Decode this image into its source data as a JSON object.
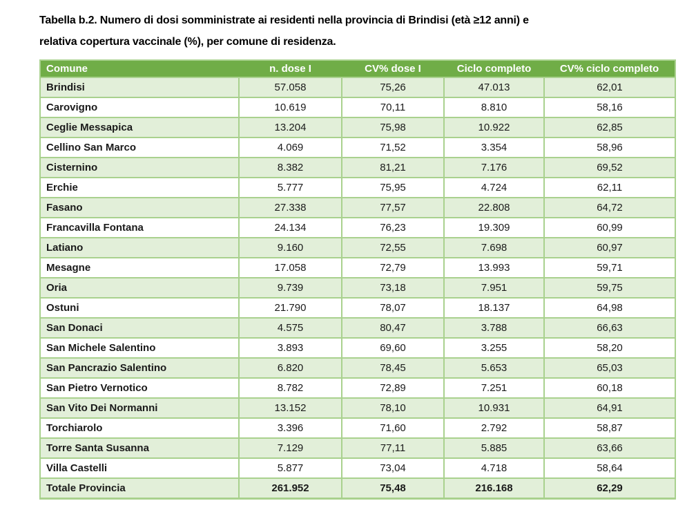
{
  "title": {
    "line1": "Tabella b.2. Numero di dosi somministrate ai residenti nella provincia di Brindisi (età ≥12 anni) e",
    "line2": "relativa copertura vaccinale (%), per comune di residenza."
  },
  "table": {
    "columns": [
      "Comune",
      "n. dose I",
      "CV% dose I",
      "Ciclo completo",
      "CV% ciclo completo"
    ],
    "rows": [
      [
        "Brindisi",
        "57.058",
        "75,26",
        "47.013",
        "62,01"
      ],
      [
        "Carovigno",
        "10.619",
        "70,11",
        "8.810",
        "58,16"
      ],
      [
        "Ceglie Messapica",
        "13.204",
        "75,98",
        "10.922",
        "62,85"
      ],
      [
        "Cellino San Marco",
        "4.069",
        "71,52",
        "3.354",
        "58,96"
      ],
      [
        "Cisternino",
        "8.382",
        "81,21",
        "7.176",
        "69,52"
      ],
      [
        "Erchie",
        "5.777",
        "75,95",
        "4.724",
        "62,11"
      ],
      [
        "Fasano",
        "27.338",
        "77,57",
        "22.808",
        "64,72"
      ],
      [
        "Francavilla Fontana",
        "24.134",
        "76,23",
        "19.309",
        "60,99"
      ],
      [
        "Latiano",
        "9.160",
        "72,55",
        "7.698",
        "60,97"
      ],
      [
        "Mesagne",
        "17.058",
        "72,79",
        "13.993",
        "59,71"
      ],
      [
        "Oria",
        "9.739",
        "73,18",
        "7.951",
        "59,75"
      ],
      [
        "Ostuni",
        "21.790",
        "78,07",
        "18.137",
        "64,98"
      ],
      [
        "San Donaci",
        "4.575",
        "80,47",
        "3.788",
        "66,63"
      ],
      [
        "San Michele Salentino",
        "3.893",
        "69,60",
        "3.255",
        "58,20"
      ],
      [
        "San Pancrazio Salentino",
        "6.820",
        "78,45",
        "5.653",
        "65,03"
      ],
      [
        "San Pietro Vernotico",
        "8.782",
        "72,89",
        "7.251",
        "60,18"
      ],
      [
        "San Vito Dei Normanni",
        "13.152",
        "78,10",
        "10.931",
        "64,91"
      ],
      [
        "Torchiarolo",
        "3.396",
        "71,60",
        "2.792",
        "58,87"
      ],
      [
        "Torre Santa Susanna",
        "7.129",
        "77,11",
        "5.885",
        "63,66"
      ],
      [
        "Villa Castelli",
        "5.877",
        "73,04",
        "4.718",
        "58,64"
      ]
    ],
    "total_row": [
      "Totale Provincia",
      "261.952",
      "75,48",
      "216.168",
      "62,29"
    ]
  },
  "colors": {
    "header_bg": "#70AD47",
    "header_text": "#FFFFFF",
    "row_alt_bg": "#E2EFD9",
    "row_bg": "#FFFFFF",
    "border": "#A9D18E",
    "body_text": "#1A1A1A"
  }
}
